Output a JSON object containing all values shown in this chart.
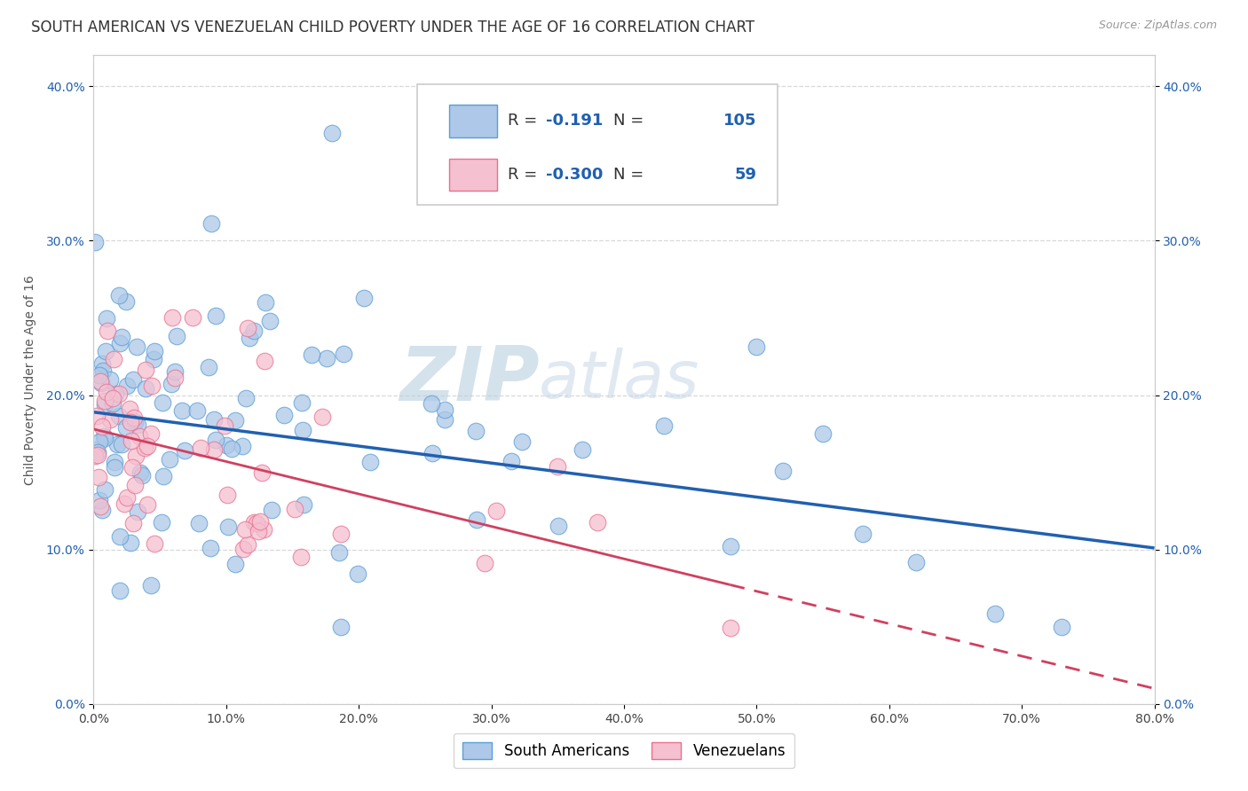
{
  "title": "SOUTH AMERICAN VS VENEZUELAN CHILD POVERTY UNDER THE AGE OF 16 CORRELATION CHART",
  "source": "Source: ZipAtlas.com",
  "ylabel": "Child Poverty Under the Age of 16",
  "xlim": [
    0.0,
    0.8
  ],
  "ylim": [
    0.0,
    0.42
  ],
  "xticks": [
    0.0,
    0.1,
    0.2,
    0.3,
    0.4,
    0.5,
    0.6,
    0.7,
    0.8
  ],
  "yticks": [
    0.0,
    0.1,
    0.2,
    0.3,
    0.4
  ],
  "xtick_labels": [
    "0.0%",
    "10.0%",
    "20.0%",
    "30.0%",
    "40.0%",
    "50.0%",
    "60.0%",
    "70.0%",
    "80.0%"
  ],
  "ytick_labels": [
    "0.0%",
    "10.0%",
    "20.0%",
    "30.0%",
    "40.0%"
  ],
  "sa_R": -0.191,
  "sa_N": 105,
  "ven_R": -0.3,
  "ven_N": 59,
  "sa_color": "#adc8e8",
  "sa_edge_color": "#5a9fd4",
  "sa_line_color": "#2060b0",
  "ven_color": "#f5c0d0",
  "ven_edge_color": "#e87090",
  "ven_line_color": "#d04060",
  "watermark_color": "#c8d8ea",
  "background_color": "#ffffff",
  "grid_color": "#d8d8d8",
  "title_fontsize": 12,
  "axis_label_fontsize": 10,
  "tick_fontsize": 10,
  "legend_fontsize": 13,
  "sa_line_intercept": 0.189,
  "sa_line_slope": -0.11,
  "ven_line_intercept": 0.178,
  "ven_line_slope": -0.21
}
